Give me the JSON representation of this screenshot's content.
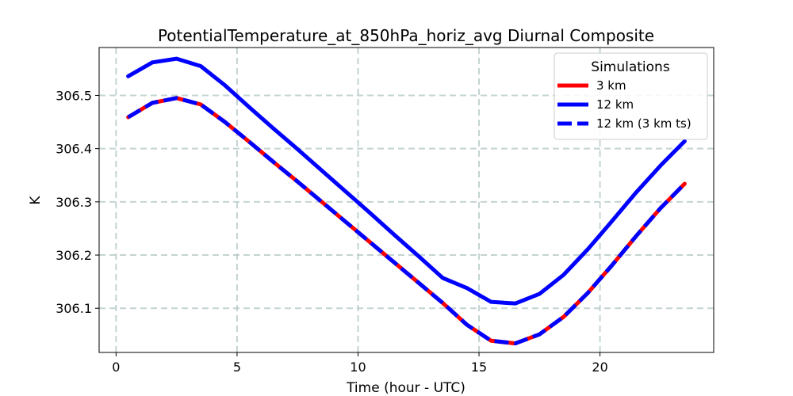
{
  "chart_data": {
    "type": "line",
    "title": "PotentialTemperature_at_850hPa_horiz_avg Diurnal Composite",
    "xlabel": "Time (hour - UTC)",
    "ylabel": "K",
    "xlim": [
      -0.7,
      24.7
    ],
    "ylim": [
      306.017,
      306.59
    ],
    "xticks": [
      0,
      5,
      10,
      15,
      20
    ],
    "xtick_labels": [
      "0",
      "5",
      "10",
      "15",
      "20"
    ],
    "yticks": [
      306.1,
      306.2,
      306.3,
      306.4,
      306.5
    ],
    "ytick_labels": [
      "306.1",
      "306.2",
      "306.3",
      "306.4",
      "306.5"
    ],
    "grid": true,
    "legend": {
      "title": "Simulations",
      "position": "top-right"
    },
    "x": [
      0.5,
      1.5,
      2.5,
      3.5,
      4.5,
      5.5,
      6.5,
      7.5,
      8.5,
      9.5,
      10.5,
      11.5,
      12.5,
      13.5,
      14.5,
      15.5,
      16.5,
      17.5,
      18.5,
      19.5,
      20.5,
      21.5,
      22.5,
      23.5
    ],
    "series": [
      {
        "name": "3 km",
        "color": "#ff0000",
        "style": "solid",
        "values": [
          306.459,
          306.486,
          306.495,
          306.483,
          306.45,
          306.413,
          306.375,
          306.338,
          306.3,
          306.262,
          306.224,
          306.186,
          306.148,
          306.11,
          306.069,
          306.039,
          306.034,
          306.051,
          306.084,
          306.129,
          306.181,
          306.236,
          306.288,
          306.334
        ]
      },
      {
        "name": "12 km",
        "color": "#0000ff",
        "style": "solid",
        "values": [
          306.536,
          306.562,
          306.569,
          306.555,
          306.519,
          306.478,
          306.438,
          306.399,
          306.359,
          306.319,
          306.279,
          306.238,
          306.198,
          306.157,
          306.138,
          306.112,
          306.109,
          306.127,
          306.163,
          306.211,
          306.264,
          306.318,
          306.368,
          306.414
        ]
      },
      {
        "name": "12 km (3 km ts)",
        "color": "#0000ff",
        "style": "dashed",
        "values": [
          306.459,
          306.486,
          306.495,
          306.483,
          306.45,
          306.413,
          306.375,
          306.338,
          306.3,
          306.262,
          306.224,
          306.186,
          306.148,
          306.11,
          306.069,
          306.039,
          306.034,
          306.051,
          306.084,
          306.129,
          306.181,
          306.236,
          306.288,
          306.334
        ]
      }
    ]
  }
}
